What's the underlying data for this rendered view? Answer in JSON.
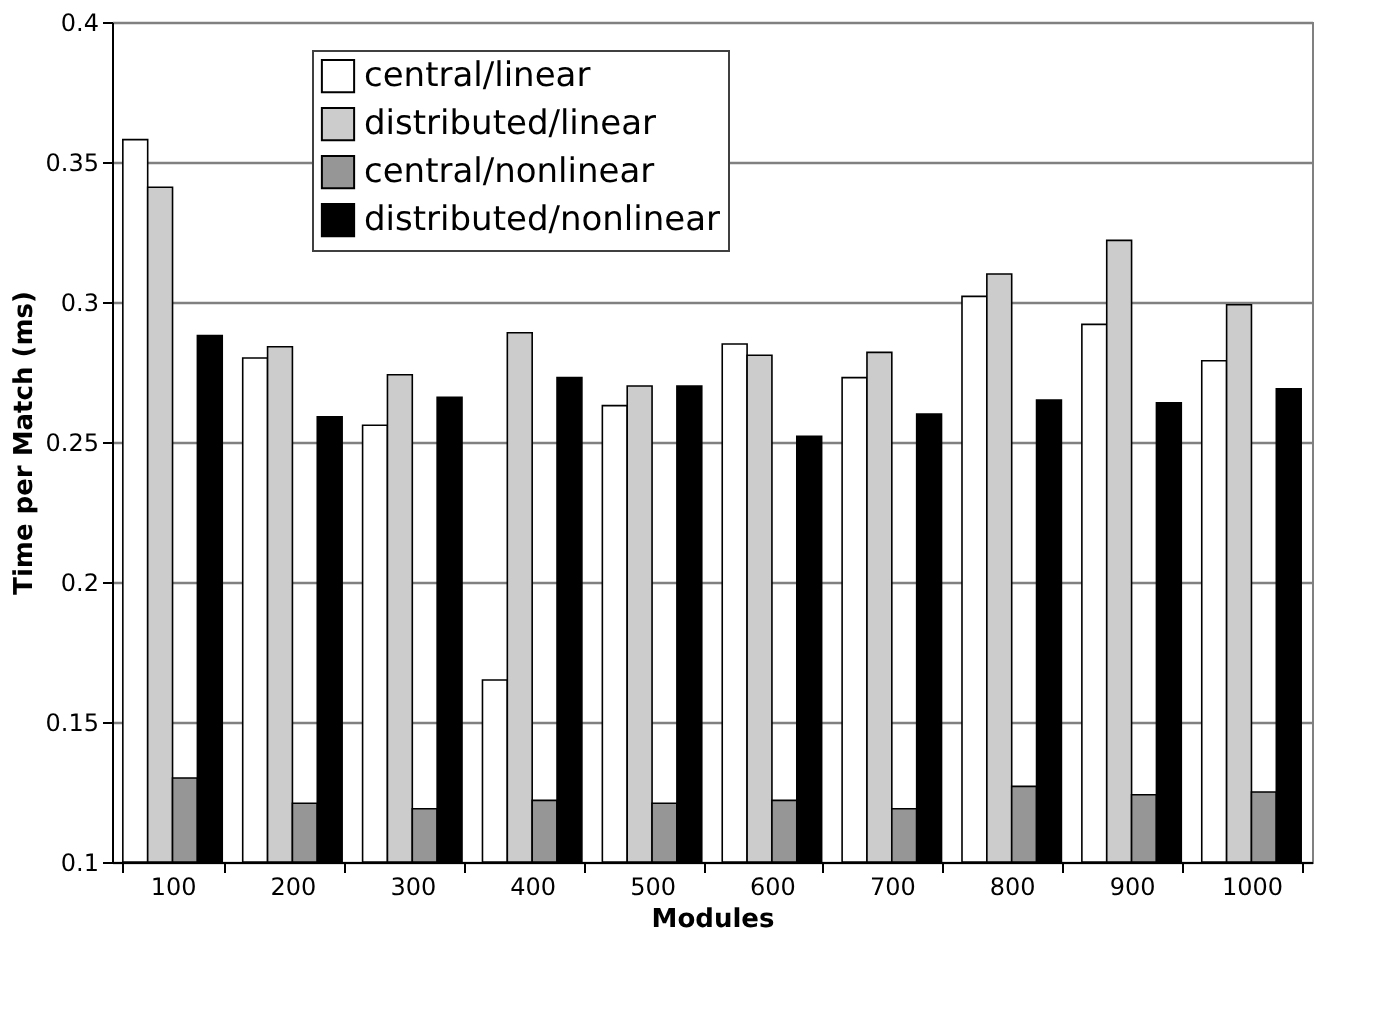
{
  "chart_data": {
    "type": "bar",
    "xlabel": "Modules",
    "ylabel": "Time per Match (ms)",
    "categories": [
      "100",
      "200",
      "300",
      "400",
      "500",
      "600",
      "700",
      "800",
      "900",
      "1000"
    ],
    "series": [
      {
        "name": "central/linear",
        "color": "#ffffff",
        "values": [
          0.358,
          0.28,
          0.256,
          0.165,
          0.263,
          0.285,
          0.273,
          0.302,
          0.292,
          0.279
        ]
      },
      {
        "name": "distributed/linear",
        "color": "#cccccc",
        "values": [
          0.341,
          0.284,
          0.274,
          0.289,
          0.27,
          0.281,
          0.282,
          0.31,
          0.322,
          0.299
        ]
      },
      {
        "name": "central/nonlinear",
        "color": "#969696",
        "values": [
          0.13,
          0.121,
          0.119,
          0.122,
          0.121,
          0.122,
          0.119,
          0.127,
          0.124,
          0.125
        ]
      },
      {
        "name": "distributed/nonlinear",
        "color": "#000000",
        "values": [
          0.288,
          0.259,
          0.266,
          0.273,
          0.27,
          0.252,
          0.26,
          0.265,
          0.264,
          0.269
        ]
      }
    ],
    "ylim": [
      0.1,
      0.4
    ],
    "yticks": [
      {
        "value": 0.1,
        "label": "0.1"
      },
      {
        "value": 0.15,
        "label": "0.15"
      },
      {
        "value": 0.2,
        "label": "0.2"
      },
      {
        "value": 0.25,
        "label": "0.25"
      },
      {
        "value": 0.3,
        "label": "0.3"
      },
      {
        "value": 0.35,
        "label": "0.35"
      },
      {
        "value": 0.4,
        "label": "0.4"
      }
    ],
    "grid": "y",
    "legend": "top left"
  }
}
